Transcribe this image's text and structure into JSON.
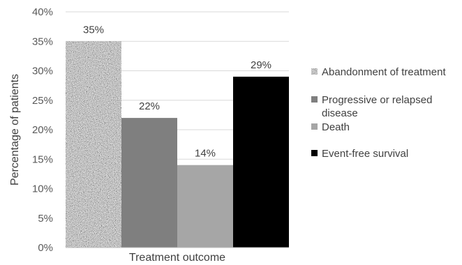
{
  "chart_data": {
    "type": "bar",
    "xlabel": "Treatment outcome",
    "ylabel": "Percentage of patients",
    "ylim": [
      0,
      40
    ],
    "ytick_step": 5,
    "ytick_suffix": "%",
    "grid": true,
    "legend_position": "right",
    "series": [
      {
        "name": "Abandonment of treatment",
        "value": 35,
        "label": "35%",
        "fill": "speckled",
        "color": "#8a8a8a"
      },
      {
        "name": "Progressive or relapsed disease",
        "value": 22,
        "label": "22%",
        "fill": "solid",
        "color": "#7f7f7f"
      },
      {
        "name": "Death",
        "value": 14,
        "label": "14%",
        "fill": "solid",
        "color": "#a6a6a6"
      },
      {
        "name": "Event-free survival",
        "value": 29,
        "label": "29%",
        "fill": "solid",
        "color": "#000000"
      }
    ]
  }
}
